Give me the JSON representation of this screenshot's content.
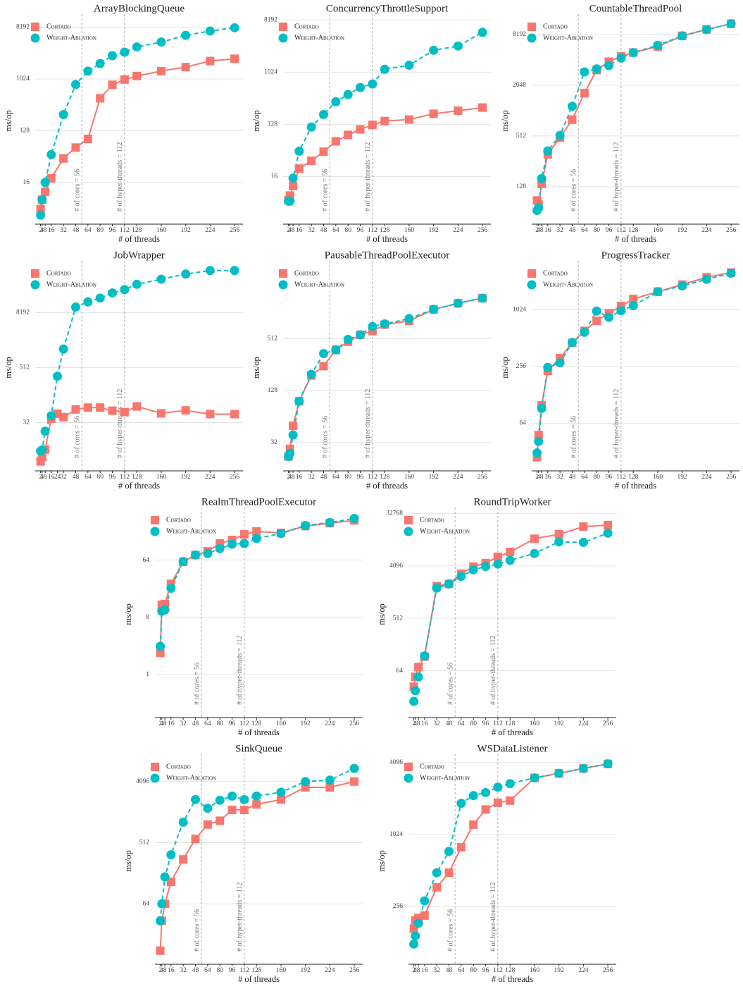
{
  "chart_data": [
    {
      "type": "line",
      "title": "ArrayBlockingQueue",
      "x_label": "# of threads",
      "y_label": "ms/op",
      "log_y": true,
      "grid": true,
      "legend": "upper left",
      "x": [
        2,
        4,
        8,
        16,
        32,
        48,
        64,
        80,
        96,
        112,
        128,
        160,
        192,
        224,
        256
      ],
      "xlim": [
        -5,
        267
      ],
      "xticks": [
        2,
        4,
        8,
        16,
        32,
        48,
        64,
        80,
        96,
        112,
        128,
        160,
        192,
        224,
        256
      ],
      "ylim": [
        3,
        12000
      ],
      "yticks": [
        16,
        128,
        1024,
        8192
      ],
      "vlines": [
        {
          "x": 56,
          "label": "# of cores = 56"
        },
        {
          "x": 112,
          "label": "# of hyper-threads = 112"
        }
      ],
      "series": [
        {
          "name": "Cortado",
          "color": "#f8766d",
          "marker": "square",
          "linestyle": "solid",
          "values": [
            5.5,
            8,
            11,
            19,
            42,
            65,
            92,
            470,
            810,
            1000,
            1150,
            1400,
            1650,
            2100,
            2300
          ]
        },
        {
          "name": "Weight-Ablation",
          "color": "#00bfc4",
          "marker": "circle",
          "linestyle": "dashed",
          "values": [
            4.3,
            8,
            16,
            49,
            245,
            820,
            1400,
            1900,
            2600,
            3000,
            3700,
            4500,
            5900,
            7000,
            8000
          ]
        }
      ]
    },
    {
      "type": "line",
      "title": "ConcurrencyThrottleSupport",
      "x_label": "# of threads",
      "y_label": "ms/op",
      "log_y": true,
      "grid": true,
      "legend": "upper left",
      "x": [
        2,
        4,
        8,
        16,
        32,
        48,
        64,
        80,
        96,
        112,
        128,
        160,
        192,
        224,
        256
      ],
      "xlim": [
        -5,
        267
      ],
      "xticks": [
        2,
        4,
        8,
        16,
        32,
        48,
        64,
        80,
        96,
        112,
        128,
        160,
        192,
        224,
        256
      ],
      "ylim": [
        2.4,
        9000
      ],
      "yticks": [
        16,
        128,
        1024,
        8192
      ],
      "vlines": [
        {
          "x": 56,
          "label": "# of cores = 56"
        },
        {
          "x": 112,
          "label": "# of hyper-threads = 112"
        }
      ],
      "series": [
        {
          "name": "Cortado",
          "color": "#f8766d",
          "marker": "square",
          "linestyle": "solid",
          "values": [
            6.3,
            7.5,
            11,
            22,
            30,
            43,
            65,
            84,
            105,
            125,
            146,
            155,
            195,
            220,
            250
          ]
        },
        {
          "name": "Weight-Ablation",
          "color": "#00bfc4",
          "marker": "circle",
          "linestyle": "dashed",
          "values": [
            6,
            6,
            15,
            44,
            115,
            190,
            315,
            420,
            555,
            640,
            1150,
            1350,
            2450,
            2900,
            5000
          ]
        }
      ]
    },
    {
      "type": "line",
      "title": "CountableThreadPool",
      "x_label": "# of threads",
      "y_label": "ms/op",
      "log_y": true,
      "grid": true,
      "legend": "upper left",
      "x": [
        2,
        4,
        8,
        16,
        32,
        48,
        64,
        80,
        96,
        112,
        128,
        160,
        192,
        224,
        256
      ],
      "xlim": [
        -5,
        267
      ],
      "xticks": [
        2,
        4,
        8,
        16,
        32,
        48,
        64,
        80,
        96,
        112,
        128,
        160,
        192,
        224,
        256
      ],
      "ylim": [
        46,
        13000
      ],
      "yticks": [
        128,
        512,
        2048,
        8192
      ],
      "vlines": [
        {
          "x": 56,
          "label": "# of cores = 56"
        },
        {
          "x": 112,
          "label": "# of hyper-threads = 112"
        }
      ],
      "series": [
        {
          "name": "Cortado",
          "color": "#f8766d",
          "marker": "square",
          "linestyle": "solid",
          "values": [
            88,
            80,
            138,
            310,
            490,
            800,
            1650,
            3100,
            3900,
            4500,
            5000,
            5900,
            7900,
            9400,
            11000
          ]
        },
        {
          "name": "Weight-Ablation",
          "color": "#00bfc4",
          "marker": "circle",
          "linestyle": "dashed",
          "values": [
            67,
            72,
            160,
            340,
            520,
            1150,
            2950,
            3200,
            3500,
            4300,
            5000,
            6100,
            7900,
            9400,
            11000
          ]
        }
      ]
    },
    {
      "type": "line",
      "title": "JobWrapper",
      "x_label": "# of threads",
      "y_label": "ms/op",
      "log_y": true,
      "grid": true,
      "legend": "upper left",
      "x": [
        2,
        4,
        8,
        16,
        24,
        32,
        48,
        64,
        80,
        96,
        112,
        128,
        160,
        192,
        224,
        256
      ],
      "xlim": [
        -5,
        267
      ],
      "xticks": [
        2,
        4,
        8,
        16,
        24,
        32,
        48,
        64,
        80,
        96,
        112,
        128,
        160,
        192,
        224,
        256
      ],
      "ylim": [
        2.8,
        93000
      ],
      "yticks": [
        32,
        512,
        8192
      ],
      "vlines": [
        {
          "x": 56,
          "label": "# of cores = 56"
        },
        {
          "x": 112,
          "label": "# of hyper-threads = 112"
        }
      ],
      "series": [
        {
          "name": "Cortado",
          "color": "#f8766d",
          "marker": "square",
          "linestyle": "solid",
          "values": [
            4.5,
            5.6,
            8.2,
            39,
            50,
            42,
            62,
            68,
            68,
            58,
            54,
            72,
            51,
            59,
            49,
            49
          ]
        },
        {
          "name": "Weight-Ablation",
          "color": "#00bfc4",
          "marker": "circle",
          "linestyle": "dashed",
          "values": [
            7.6,
            8,
            20.7,
            45,
            330,
            1300,
            10800,
            14000,
            17000,
            22000,
            26000,
            34000,
            44000,
            57000,
            68000,
            68000
          ]
        }
      ]
    },
    {
      "type": "line",
      "title": "PausableThreadPoolExecutor",
      "x_label": "# of threads",
      "y_label": "ms/op",
      "log_y": true,
      "grid": true,
      "legend": "upper left",
      "x": [
        2,
        4,
        8,
        16,
        32,
        48,
        64,
        80,
        96,
        112,
        128,
        160,
        192,
        224,
        256
      ],
      "xlim": [
        -5,
        267
      ],
      "xticks": [
        2,
        4,
        8,
        16,
        32,
        48,
        64,
        80,
        96,
        112,
        128,
        160,
        192,
        224,
        256
      ],
      "ylim": [
        15,
        3700
      ],
      "yticks": [
        32,
        128,
        512
      ],
      "vlines": [
        {
          "x": 56,
          "label": "# of cores = 56"
        },
        {
          "x": 112,
          "label": "# of hyper-threads = 112"
        }
      ],
      "series": [
        {
          "name": "Cortado",
          "color": "#f8766d",
          "marker": "square",
          "linestyle": "solid",
          "values": [
            22,
            27,
            50,
            96,
            191,
            245,
            378,
            470,
            565,
            625,
            740,
            820,
            1110,
            1310,
            1500
          ]
        },
        {
          "name": "Weight-Ablation",
          "color": "#00bfc4",
          "marker": "circle",
          "linestyle": "dashed",
          "values": [
            22,
            24,
            39,
            96,
            197,
            342,
            378,
            500,
            565,
            705,
            755,
            870,
            1110,
            1310,
            1500
          ]
        }
      ]
    },
    {
      "type": "line",
      "title": "ProgressTracker",
      "x_label": "# of threads",
      "y_label": "ms/op",
      "log_y": true,
      "grid": true,
      "legend": "upper left",
      "x": [
        2,
        4,
        8,
        16,
        32,
        48,
        64,
        80,
        96,
        112,
        128,
        160,
        192,
        224,
        256
      ],
      "xlim": [
        -5,
        267
      ],
      "xticks": [
        2,
        4,
        8,
        16,
        32,
        48,
        64,
        80,
        96,
        112,
        128,
        160,
        192,
        224,
        256
      ],
      "ylim": [
        20,
        3100
      ],
      "yticks": [
        64,
        256,
        1024
      ],
      "vlines": [
        {
          "x": 56,
          "label": "# of cores = 56"
        },
        {
          "x": 112,
          "label": "# of hyper-threads = 112"
        }
      ],
      "series": [
        {
          "name": "Cortado",
          "color": "#f8766d",
          "marker": "square",
          "linestyle": "solid",
          "values": [
            28,
            48,
            99,
            230,
            315,
            455,
            610,
            780,
            940,
            1120,
            1330,
            1590,
            1890,
            2260,
            2540
          ]
        },
        {
          "name": "Weight-Ablation",
          "color": "#00bfc4",
          "marker": "circle",
          "linestyle": "dashed",
          "values": [
            31,
            41,
            92,
            250,
            280,
            460,
            590,
            990,
            850,
            1000,
            1130,
            1590,
            1830,
            2150,
            2500
          ]
        }
      ]
    },
    {
      "type": "line",
      "title": "RealmThreadPoolExecutor",
      "x_label": "# of threads",
      "y_label": "ms/op",
      "log_y": true,
      "grid": true,
      "legend": "upper left",
      "x": [
        2,
        4,
        8,
        16,
        32,
        48,
        64,
        80,
        96,
        112,
        128,
        160,
        192,
        224,
        256
      ],
      "xlim": [
        -5,
        267
      ],
      "xticks": [
        2,
        4,
        8,
        16,
        32,
        48,
        64,
        80,
        96,
        112,
        128,
        160,
        192,
        224,
        256
      ],
      "ylim": [
        0.21,
        380
      ],
      "yticks": [
        1,
        8,
        64
      ],
      "vlines": [
        {
          "x": 56,
          "label": "# of cores = 56"
        },
        {
          "x": 112,
          "label": "# of hyper-threads = 112"
        }
      ],
      "series": [
        {
          "name": "Cortado",
          "color": "#f8766d",
          "marker": "square",
          "linestyle": "solid",
          "values": [
            2.2,
            12.6,
            13,
            27,
            60,
            77,
            88,
            117,
            133,
            163,
            181,
            172,
            220,
            245,
            270
          ]
        },
        {
          "name": "Weight-Ablation",
          "color": "#00bfc4",
          "marker": "circle",
          "linestyle": "dashed",
          "values": [
            2.8,
            10,
            10.5,
            23,
            61,
            77,
            81,
            97,
            114,
            117,
            140,
            168,
            225,
            250,
            290
          ]
        }
      ]
    },
    {
      "type": "line",
      "title": "RoundTripWorker",
      "x_label": "# of threads",
      "y_label": "ms/op",
      "log_y": true,
      "grid": true,
      "legend": "upper left",
      "x": [
        2,
        4,
        8,
        16,
        32,
        48,
        64,
        80,
        96,
        112,
        128,
        160,
        192,
        224,
        256
      ],
      "xlim": [
        -5,
        267
      ],
      "xticks": [
        2,
        4,
        8,
        16,
        32,
        48,
        64,
        80,
        96,
        112,
        128,
        160,
        192,
        224,
        256
      ],
      "ylim": [
        10,
        36000
      ],
      "yticks": [
        64,
        512,
        4096,
        32768
      ],
      "vlines": [
        {
          "x": 56,
          "label": "# of cores = 56"
        },
        {
          "x": 112,
          "label": "# of hyper-threads = 112"
        }
      ],
      "series": [
        {
          "name": "Cortado",
          "color": "#f8766d",
          "marker": "square",
          "linestyle": "solid",
          "values": [
            34,
            50,
            74,
            112,
            1830,
            2000,
            3000,
            3970,
            4570,
            5870,
            7100,
            12000,
            14300,
            19400,
            20600
          ]
        },
        {
          "name": "Weight-Ablation",
          "color": "#00bfc4",
          "marker": "circle",
          "linestyle": "dashed",
          "values": [
            19,
            29,
            50,
            115,
            1700,
            2000,
            2700,
            3500,
            4000,
            4400,
            5100,
            6700,
            10600,
            10400,
            15000
          ]
        }
      ]
    },
    {
      "type": "line",
      "title": "SinkQueue",
      "x_label": "# of threads",
      "y_label": "ms/op",
      "log_y": true,
      "grid": true,
      "legend": "upper left",
      "x": [
        2,
        4,
        8,
        16,
        32,
        48,
        64,
        80,
        96,
        112,
        128,
        160,
        192,
        224,
        256
      ],
      "xlim": [
        -5,
        267
      ],
      "xticks": [
        2,
        4,
        8,
        16,
        32,
        48,
        64,
        80,
        96,
        112,
        128,
        160,
        192,
        224,
        256
      ],
      "ylim": [
        8.2,
        9200
      ],
      "yticks": [
        64,
        512,
        4096
      ],
      "vlines": [
        {
          "x": 56,
          "label": "# of cores = 56"
        },
        {
          "x": 112,
          "label": "# of hyper-threads = 112"
        }
      ],
      "series": [
        {
          "name": "Cortado",
          "color": "#f8766d",
          "marker": "square",
          "linestyle": "solid",
          "values": [
            13,
            36,
            64,
            135,
            290,
            580,
            950,
            1080,
            1560,
            1560,
            1880,
            2220,
            3360,
            3360,
            4096
          ]
        },
        {
          "name": "Weight-Ablation",
          "color": "#00bfc4",
          "marker": "circle",
          "linestyle": "dashed",
          "values": [
            36,
            64,
            160,
            340,
            1030,
            2220,
            1650,
            2170,
            2500,
            2220,
            2500,
            2850,
            4096,
            4300,
            6400
          ]
        }
      ]
    },
    {
      "type": "line",
      "title": "WSDataListener",
      "x_label": "# of threads",
      "y_label": "ms/op",
      "log_y": true,
      "grid": true,
      "legend": "upper left",
      "x": [
        2,
        4,
        8,
        16,
        32,
        48,
        64,
        80,
        96,
        112,
        128,
        160,
        192,
        224,
        256
      ],
      "xlim": [
        -5,
        267
      ],
      "xticks": [
        2,
        4,
        8,
        16,
        32,
        48,
        64,
        80,
        96,
        112,
        128,
        160,
        192,
        224,
        256
      ],
      "ylim": [
        84,
        4500
      ],
      "yticks": [
        256,
        1024,
        4096
      ],
      "vlines": [
        {
          "x": 56,
          "label": "# of cores = 56"
        },
        {
          "x": 112,
          "label": "# of hyper-threads = 112"
        }
      ],
      "series": [
        {
          "name": "Cortado",
          "color": "#f8766d",
          "marker": "square",
          "linestyle": "solid",
          "values": [
            167,
            195,
            205,
            215,
            370,
            490,
            800,
            1240,
            1660,
            1890,
            1970,
            3050,
            3330,
            3660,
            4000
          ]
        },
        {
          "name": "Weight-Ablation",
          "color": "#00bfc4",
          "marker": "circle",
          "linestyle": "dashed",
          "values": [
            124,
            145,
            185,
            285,
            490,
            740,
            1870,
            2170,
            2300,
            2550,
            2730,
            3050,
            3330,
            3660,
            4000
          ]
        }
      ]
    }
  ]
}
